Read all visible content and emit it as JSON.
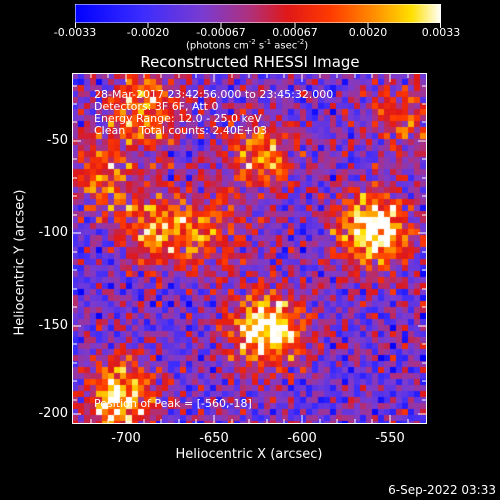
{
  "colorbar": {
    "tick_labels": [
      "-0.0033",
      "-0.0020",
      "-0.00067",
      "0.00067",
      "0.0020",
      "0.0033"
    ],
    "units": "(photons cm",
    "units_sup1": "-2",
    "units_mid": " s",
    "units_sup2": "-1",
    "units_mid2": " asec",
    "units_sup3": "-2",
    "units_end": ")"
  },
  "title": "Reconstructed RHESSI Image",
  "info": {
    "time_range": "28-Mar-2017 23:42:56.000 to 23:45:32.000",
    "detectors": "Detectors: 3F 6F, Att 0",
    "energy": "Energy Range: 12.0 - 25.0 keV",
    "method": "Clean    Total counts: 2.40E+03"
  },
  "peak_text": "Position of Peak = [-560,-18]",
  "axes": {
    "xlabel": "Heliocentric X (arcsec)",
    "ylabel": "Heliocentric Y (arcsec)",
    "xticks": [
      "-700",
      "-650",
      "-600",
      "-550"
    ],
    "yticks": [
      "-50",
      "-100",
      "-150",
      "-200"
    ]
  },
  "footer_date": "6-Sep-2022 03:33",
  "chart_data": {
    "type": "heatmap",
    "title": "Reconstructed RHESSI Image",
    "xlabel": "Heliocentric X (arcsec)",
    "ylabel": "Heliocentric Y (arcsec)",
    "xlim": [
      -727,
      -527
    ],
    "ylim": [
      -203,
      -16
    ],
    "color_range": [
      -0.0033,
      0.0033
    ],
    "peak": [
      -560,
      -18
    ],
    "sources": [
      {
        "x": -557,
        "y": -100,
        "strength": 1.0
      },
      {
        "x": -617,
        "y": -153,
        "strength": 0.95
      },
      {
        "x": -700,
        "y": -190,
        "strength": 0.85
      },
      {
        "x": -620,
        "y": -60,
        "strength": 0.6
      },
      {
        "x": -685,
        "y": -35,
        "strength": 0.65
      },
      {
        "x": -680,
        "y": -100,
        "strength": 0.6
      },
      {
        "x": -650,
        "y": -100,
        "strength": 0.45
      },
      {
        "x": -710,
        "y": -70,
        "strength": 0.5
      },
      {
        "x": -540,
        "y": -40,
        "strength": 0.4
      }
    ]
  }
}
